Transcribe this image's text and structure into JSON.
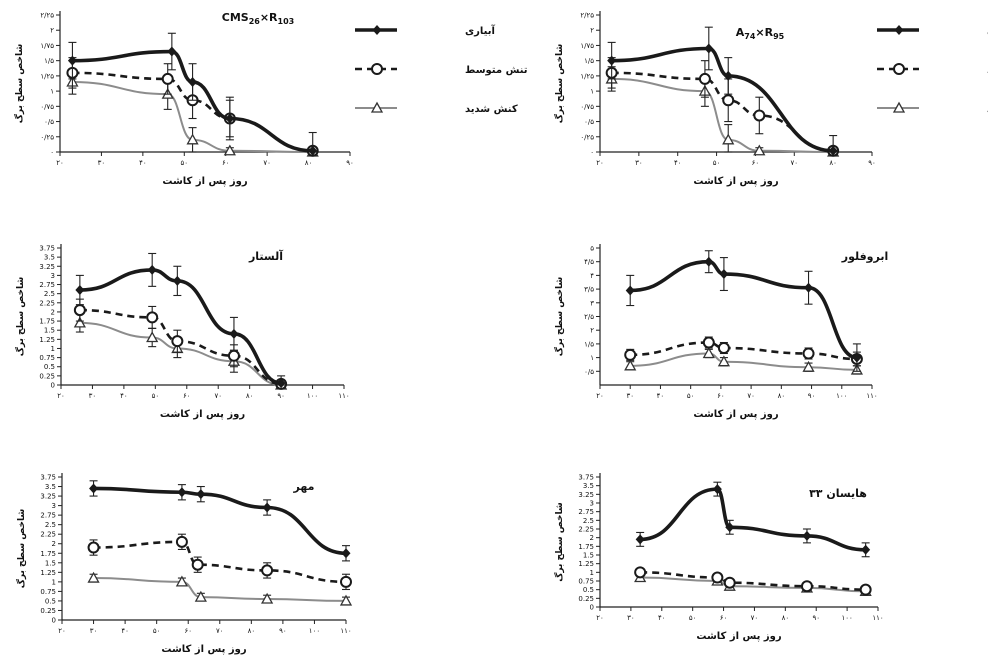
{
  "figure": {
    "legend": {
      "series_names": [
        "آبیاری",
        "تنش متوسط",
        "کنش شدید"
      ]
    }
  },
  "chart_data": [
    {
      "type": "line",
      "title": "CMS26×R103",
      "title_base": "CMS",
      "title_sub1": "26",
      "title_mid": "×R",
      "title_sub2": "103",
      "xlabel": "روز پس از کاشت",
      "ylabel": "شاخص سطح برگ",
      "xlim": [
        20,
        90
      ],
      "xticks": [
        20,
        30,
        40,
        50,
        60,
        70,
        80,
        90
      ],
      "xtick_labels": [
        "۲۰",
        "۳۰",
        "۴۰",
        "۵۰",
        "۶۰",
        "۷۰",
        "۸۰",
        "۹۰"
      ],
      "ylim": [
        0,
        2.25
      ],
      "yticks": [
        0,
        0.25,
        0.5,
        0.75,
        1,
        1.25,
        1.5,
        1.75,
        2,
        2.25
      ],
      "ytick_labels": [
        "۰",
        "۰/۲۵",
        "۰/۵",
        "۰/۷۵",
        "۱",
        "۱/۲۵",
        "۱/۵",
        "۱/۷۵",
        "۲",
        "۲/۲۵"
      ],
      "legend_position": "right",
      "series": [
        {
          "name": "آبیاری",
          "marker": "diamond",
          "points": [
            [
              23,
              1.5
            ],
            [
              47,
              1.65
            ],
            [
              52,
              1.15
            ],
            [
              61,
              0.55
            ],
            [
              81,
              0.02
            ]
          ],
          "errors": [
            0.3,
            0.3,
            0.3,
            0.35,
            0.3
          ]
        },
        {
          "name": "تنش متوسط",
          "marker": "circle",
          "points": [
            [
              23,
              1.3
            ],
            [
              46,
              1.2
            ],
            [
              52,
              0.85
            ],
            [
              61,
              0.55
            ],
            [
              81,
              0.02
            ]
          ],
          "errors": [
            0.25,
            0.25,
            0.3,
            0.3,
            0.05
          ]
        },
        {
          "name": "کنش شدید",
          "marker": "triangle",
          "points": [
            [
              23,
              1.15
            ],
            [
              46,
              0.95
            ],
            [
              52,
              0.2
            ],
            [
              61,
              0.02
            ],
            [
              81,
              0.0
            ]
          ],
          "errors": [
            0.2,
            0.25,
            0.2,
            0.05,
            0.03
          ]
        }
      ]
    },
    {
      "type": "line",
      "title": "A74×R95",
      "title_base": "A",
      "title_sub1": "74",
      "title_mid": "×R",
      "title_sub2": "95",
      "xlabel": "روز پس از کاشت",
      "ylabel": "شاخص سطح برگ",
      "xlim": [
        20,
        90
      ],
      "xticks": [
        20,
        30,
        40,
        50,
        60,
        70,
        80,
        90
      ],
      "xtick_labels": [
        "۲۰",
        "۳۰",
        "۴۰",
        "۵۰",
        "۶۰",
        "۷۰",
        "۸۰",
        "۹۰"
      ],
      "ylim": [
        0,
        2.25
      ],
      "yticks": [
        0,
        0.25,
        0.5,
        0.75,
        1,
        1.25,
        1.5,
        1.75,
        2,
        2.25
      ],
      "ytick_labels": [
        "۰",
        "۰/۲۵",
        "۰/۵",
        "۰/۷۵",
        "۱",
        "۱/۲۵",
        "۱/۵",
        "۱/۷۵",
        "۲",
        "۲/۲۵"
      ],
      "legend_position": "right",
      "series": [
        {
          "name": "آبیاری",
          "marker": "diamond",
          "points": [
            [
              23,
              1.5
            ],
            [
              48,
              1.7
            ],
            [
              53,
              1.25
            ],
            [
              80,
              0.02
            ]
          ],
          "errors": [
            0.3,
            0.35,
            0.3,
            0.25
          ]
        },
        {
          "name": "تنش متوسط",
          "marker": "circle",
          "points": [
            [
              23,
              1.3
            ],
            [
              47,
              1.2
            ],
            [
              53,
              0.85
            ],
            [
              61,
              0.6
            ],
            [
              80,
              0.02
            ]
          ],
          "errors": [
            0.25,
            0.3,
            0.35,
            0.3,
            0.05
          ]
        },
        {
          "name": "کنش شدید",
          "marker": "triangle",
          "points": [
            [
              23,
              1.2
            ],
            [
              47,
              1.0
            ],
            [
              53,
              0.2
            ],
            [
              61,
              0.02
            ],
            [
              80,
              0.0
            ]
          ],
          "errors": [
            0.2,
            0.25,
            0.25,
            0.05,
            0.03
          ]
        }
      ]
    },
    {
      "type": "line",
      "title": "آلستار",
      "xlabel": "روز پس از کاشت",
      "ylabel": "شاخص سطح برگ",
      "xlim": [
        20,
        110
      ],
      "xticks": [
        20,
        30,
        40,
        50,
        60,
        70,
        80,
        90,
        100,
        110
      ],
      "xtick_labels": [
        "۲۰",
        "۳۰",
        "۴۰",
        "۵۰",
        "۶۰",
        "۷۰",
        "۸۰",
        "۹۰",
        "۱۰۰",
        "۱۱۰"
      ],
      "ylim": [
        0,
        3.75
      ],
      "yticks": [
        0,
        0.25,
        0.5,
        0.75,
        1,
        1.25,
        1.5,
        1.75,
        2,
        2.25,
        2.5,
        2.75,
        3,
        3.25,
        3.5,
        3.75
      ],
      "ytick_labels": [
        "0",
        "0.25",
        "0.5",
        "0.75",
        "1",
        "1.25",
        "1.5",
        "1.75",
        "2",
        "2.25",
        "2.5",
        "2.75",
        "3",
        "3.25",
        "3.5",
        "3.75"
      ],
      "series": [
        {
          "name": "آبیاری",
          "marker": "diamond",
          "points": [
            [
              26,
              2.6
            ],
            [
              49,
              3.15
            ],
            [
              57,
              2.85
            ],
            [
              75,
              1.4
            ],
            [
              90,
              0.05
            ]
          ],
          "errors": [
            0.4,
            0.45,
            0.4,
            0.45,
            0.2
          ]
        },
        {
          "name": "تنش متوسط",
          "marker": "circle",
          "points": [
            [
              26,
              2.05
            ],
            [
              49,
              1.85
            ],
            [
              57,
              1.2
            ],
            [
              75,
              0.8
            ],
            [
              90,
              0.03
            ]
          ],
          "errors": [
            0.3,
            0.3,
            0.3,
            0.3,
            0.05
          ]
        },
        {
          "name": "کنش شدید",
          "marker": "triangle",
          "points": [
            [
              26,
              1.7
            ],
            [
              49,
              1.3
            ],
            [
              57,
              1.0
            ],
            [
              75,
              0.65
            ],
            [
              90,
              0.0
            ]
          ],
          "errors": [
            0.25,
            0.25,
            0.25,
            0.3,
            0.03
          ]
        }
      ]
    },
    {
      "type": "line",
      "title": "ابروفلور",
      "xlabel": "روز پس از کاشت",
      "ylabel": "شاخص سطح برگ",
      "xlim": [
        20,
        110
      ],
      "xticks": [
        20,
        30,
        40,
        50,
        60,
        70,
        80,
        90,
        100,
        110
      ],
      "xtick_labels": [
        "۲۰",
        "۳۰",
        "۴۰",
        "۵۰",
        "۶۰",
        "۷۰",
        "۸۰",
        "۹۰",
        "۱۰۰",
        "۱۱۰"
      ],
      "ylim": [
        0,
        5
      ],
      "yticks": [
        0.5,
        1,
        1.5,
        2,
        2.5,
        3,
        3.5,
        4,
        4.5,
        5
      ],
      "ytick_labels": [
        "۰/۵",
        "۱",
        "۱/۵",
        "۲",
        "۲/۵",
        "۳",
        "۳/۵",
        "۴",
        "۴/۵",
        "۵"
      ],
      "series": [
        {
          "name": "آبیاری",
          "marker": "diamond",
          "points": [
            [
              30,
              3.45
            ],
            [
              56,
              4.5
            ],
            [
              61,
              4.05
            ],
            [
              89,
              3.55
            ],
            [
              105,
              1.0
            ]
          ],
          "errors": [
            0.55,
            0.4,
            0.6,
            0.6,
            0.5
          ]
        },
        {
          "name": "تنش متوسط",
          "marker": "circle",
          "points": [
            [
              30,
              1.1
            ],
            [
              56,
              1.55
            ],
            [
              61,
              1.35
            ],
            [
              89,
              1.15
            ],
            [
              105,
              0.95
            ]
          ],
          "errors": [
            0.2,
            0.2,
            0.2,
            0.2,
            0.25
          ]
        },
        {
          "name": "کنش شدید",
          "marker": "triangle",
          "points": [
            [
              30,
              0.7
            ],
            [
              56,
              1.15
            ],
            [
              61,
              0.85
            ],
            [
              89,
              0.65
            ],
            [
              105,
              0.55
            ]
          ],
          "errors": [
            0.15,
            0.15,
            0.15,
            0.15,
            0.15
          ]
        }
      ]
    },
    {
      "type": "line",
      "title": "مهر",
      "xlabel": "روز پس از کاشت",
      "ylabel": "شاخص سطح برگ",
      "xlim": [
        20,
        110
      ],
      "xticks": [
        20,
        30,
        40,
        50,
        60,
        70,
        80,
        90,
        100,
        110
      ],
      "xtick_labels": [
        "۲۰",
        "۳۰",
        "۴۰",
        "۵۰",
        "۶۰",
        "۷۰",
        "۸۰",
        "۹۰",
        "۱۰۰",
        "۱۱۰"
      ],
      "ylim": [
        0,
        3.75
      ],
      "yticks": [
        0,
        0.25,
        0.5,
        0.75,
        1,
        1.25,
        1.5,
        1.75,
        2,
        2.25,
        2.5,
        2.75,
        3,
        3.25,
        3.5,
        3.75
      ],
      "ytick_labels": [
        "0",
        "0.25",
        "0.5",
        "0.75",
        "1",
        "1.25",
        "1.5",
        "1.75",
        "2",
        "2.25",
        "2.5",
        "2.75",
        "3",
        "3.25",
        "3.5",
        "3.75"
      ],
      "series": [
        {
          "name": "آبیاری",
          "marker": "diamond",
          "points": [
            [
              30,
              3.45
            ],
            [
              58,
              3.35
            ],
            [
              64,
              3.3
            ],
            [
              85,
              2.95
            ],
            [
              110,
              1.75
            ]
          ],
          "errors": [
            0.2,
            0.2,
            0.2,
            0.2,
            0.2
          ]
        },
        {
          "name": "تنش متوسط",
          "marker": "circle",
          "points": [
            [
              30,
              1.9
            ],
            [
              58,
              2.05
            ],
            [
              63,
              1.45
            ],
            [
              85,
              1.3
            ],
            [
              110,
              1.0
            ]
          ],
          "errors": [
            0.2,
            0.2,
            0.2,
            0.2,
            0.2
          ]
        },
        {
          "name": "کنش شدید",
          "marker": "triangle",
          "points": [
            [
              30,
              1.1
            ],
            [
              58,
              1.0
            ],
            [
              64,
              0.6
            ],
            [
              85,
              0.55
            ],
            [
              110,
              0.5
            ]
          ],
          "errors": [
            0.1,
            0.1,
            0.1,
            0.1,
            0.1
          ]
        }
      ]
    },
    {
      "type": "line",
      "title": "هایسان ۳۳",
      "xlabel": "روز پس از کاشت",
      "ylabel": "شاخص سطح برگ",
      "xlim": [
        20,
        110
      ],
      "xticks": [
        20,
        30,
        40,
        50,
        60,
        70,
        80,
        90,
        100,
        110
      ],
      "xtick_labels": [
        "۲۰",
        "۳۰",
        "۴۰",
        "۵۰",
        "۶۰",
        "۷۰",
        "۸۰",
        "۹۰",
        "۱۰۰",
        "۱۱۰"
      ],
      "ylim": [
        0,
        3.75
      ],
      "yticks": [
        0,
        0.25,
        0.5,
        0.75,
        1,
        1.25,
        1.5,
        1.75,
        2,
        2.25,
        2.5,
        2.75,
        3,
        3.25,
        3.5,
        3.75
      ],
      "ytick_labels": [
        "0",
        "0.25",
        "0.5",
        "0.75",
        "1",
        "1.25",
        "1.5",
        "1.75",
        "2",
        "2.25",
        "2.5",
        "2.75",
        "3",
        "3.25",
        "3.5",
        "3.75"
      ],
      "series": [
        {
          "name": "آبیاری",
          "marker": "diamond",
          "points": [
            [
              33,
              1.95
            ],
            [
              58,
              3.4
            ],
            [
              62,
              2.3
            ],
            [
              87,
              2.05
            ],
            [
              106,
              1.65
            ]
          ],
          "errors": [
            0.2,
            0.2,
            0.2,
            0.2,
            0.2
          ]
        },
        {
          "name": "تنش متوسط",
          "marker": "circle",
          "points": [
            [
              33,
              1.0
            ],
            [
              58,
              0.85
            ],
            [
              62,
              0.7
            ],
            [
              87,
              0.6
            ],
            [
              106,
              0.5
            ]
          ],
          "errors": [
            0.1,
            0.1,
            0.1,
            0.1,
            0.1
          ]
        },
        {
          "name": "کنش شدید",
          "marker": "triangle",
          "points": [
            [
              33,
              0.85
            ],
            [
              58,
              0.75
            ],
            [
              62,
              0.6
            ],
            [
              87,
              0.55
            ],
            [
              106,
              0.45
            ]
          ],
          "errors": [
            0.1,
            0.1,
            0.1,
            0.1,
            0.1
          ]
        }
      ]
    }
  ]
}
